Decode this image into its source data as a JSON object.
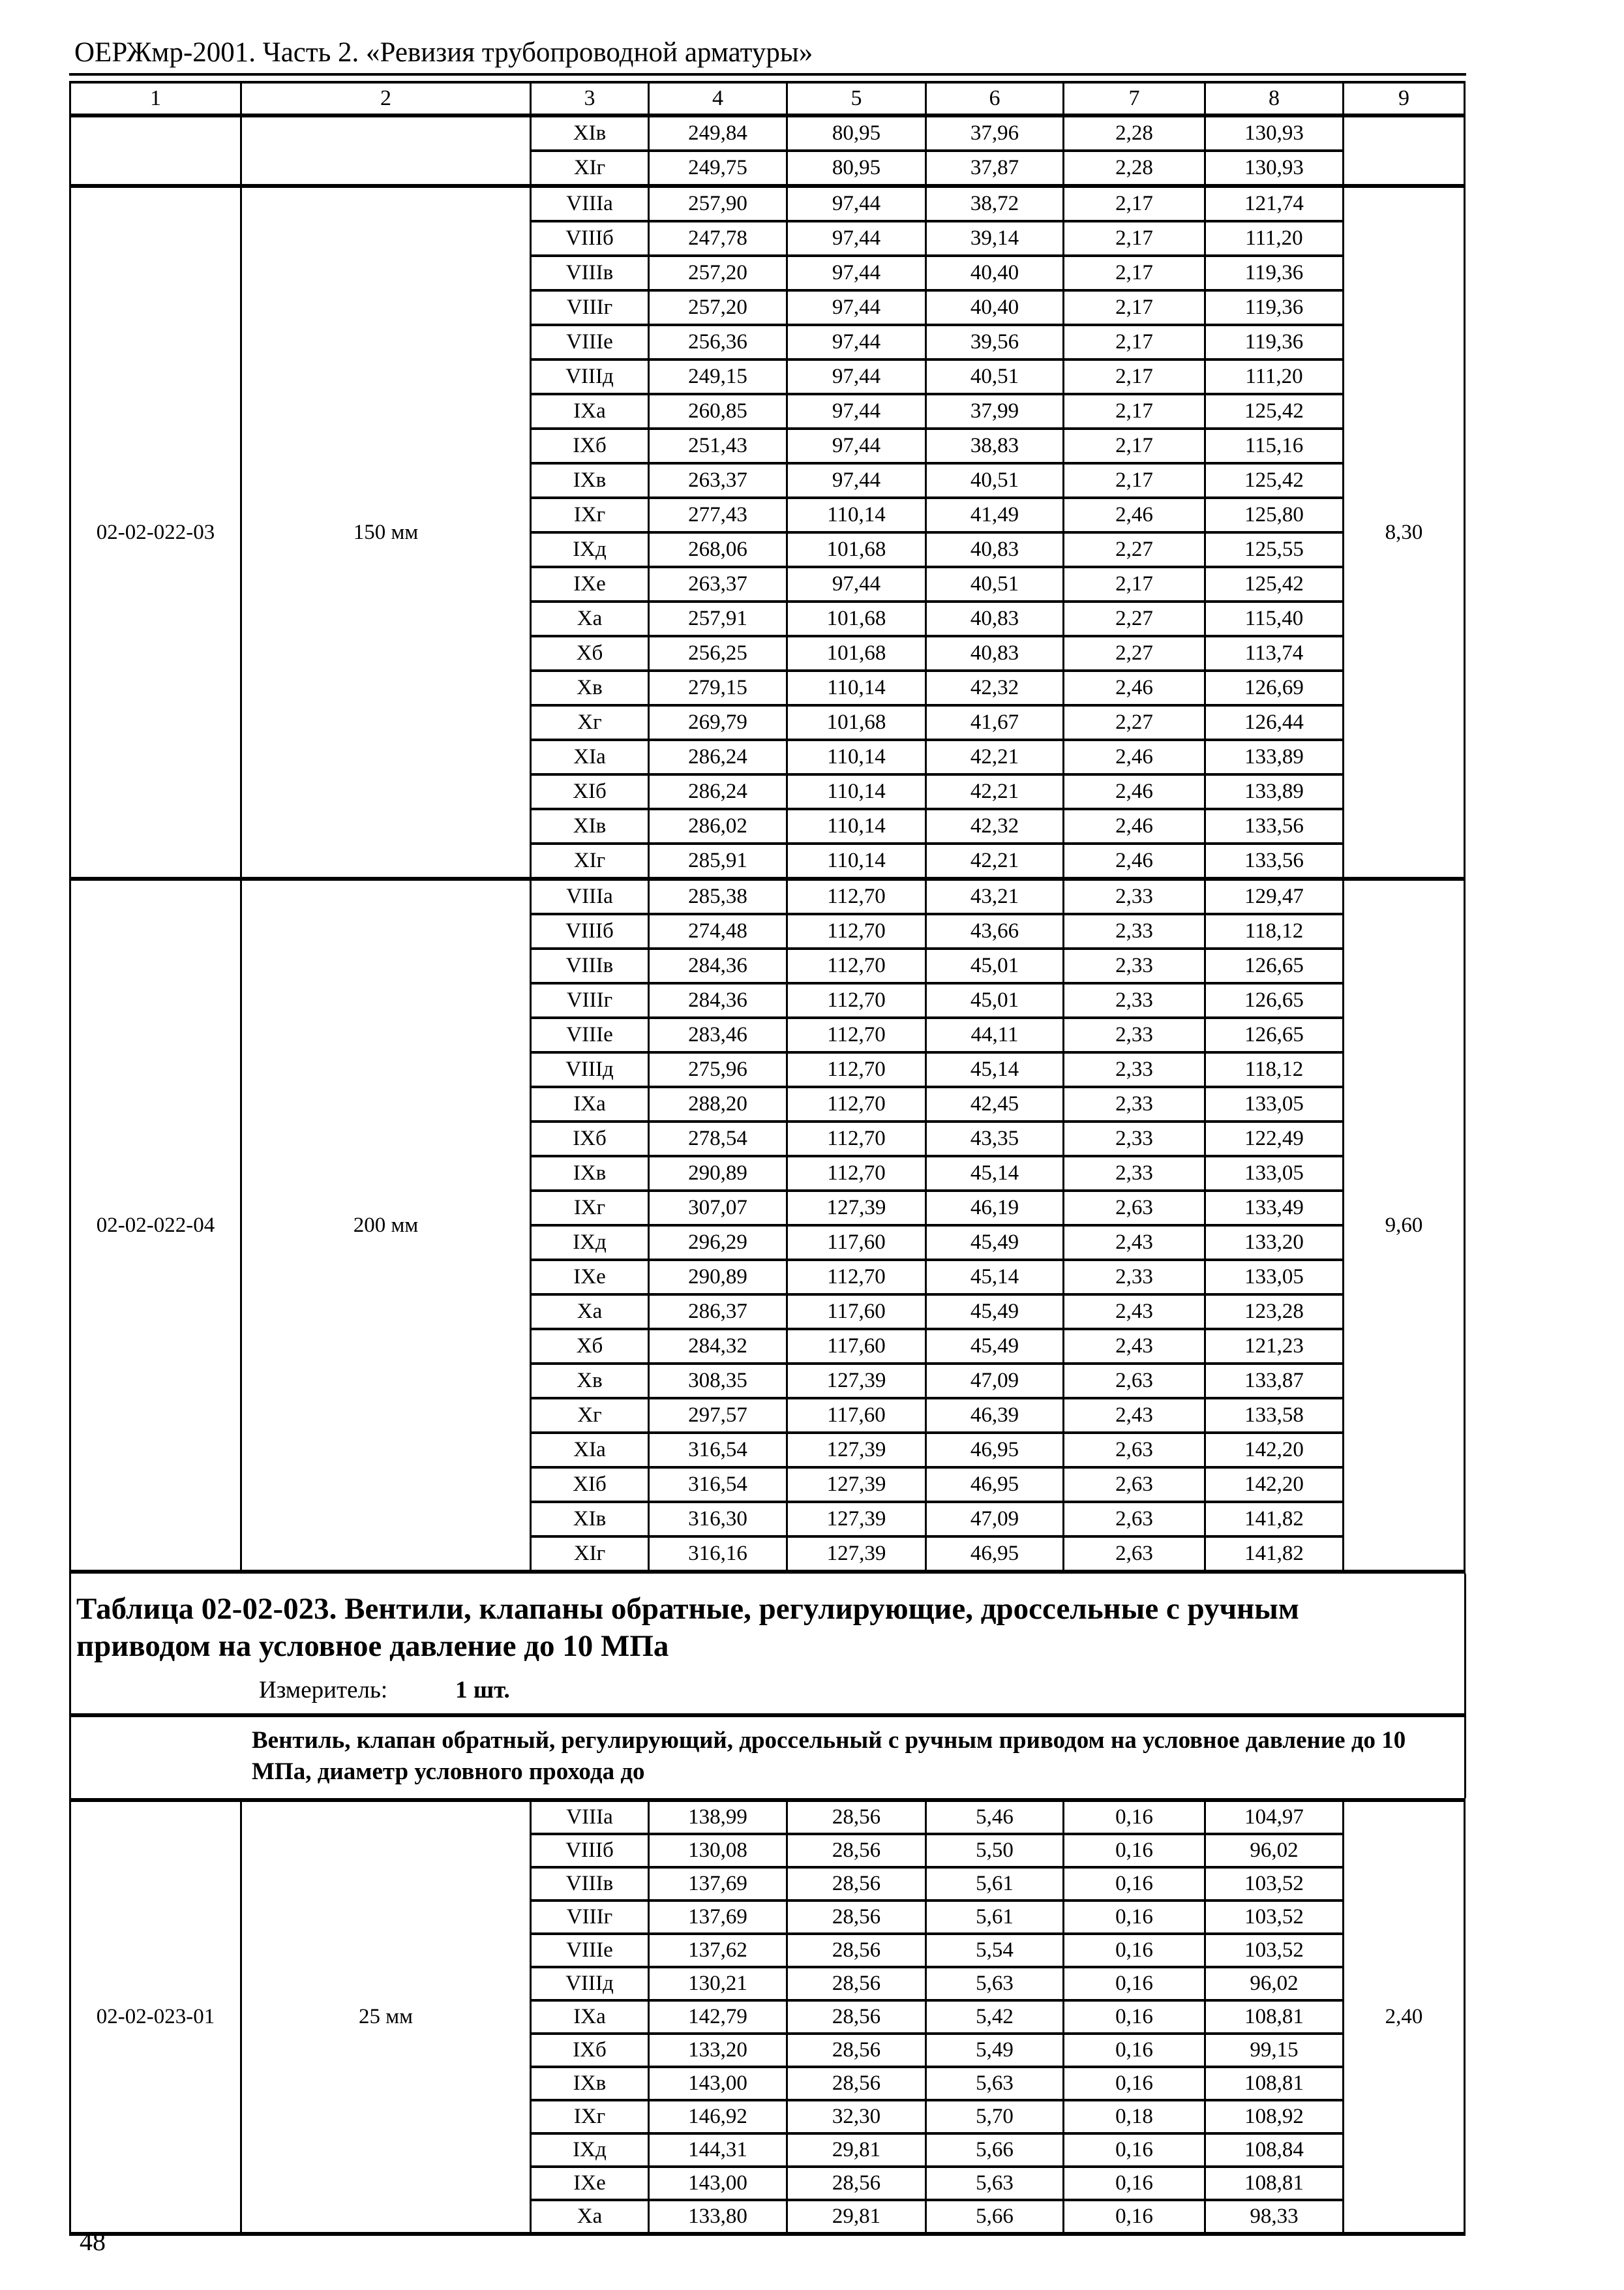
{
  "page": {
    "header": "ОЕРЖмр-2001. Часть 2. «Ревизия трубопроводной арматуры»",
    "number": "48"
  },
  "table": {
    "col_numbers": [
      "1",
      "2",
      "3",
      "4",
      "5",
      "6",
      "7",
      "8",
      "9"
    ],
    "blocks": [
      {
        "code": "",
        "size": "",
        "extra": "",
        "rows": [
          [
            "XIв",
            "249,84",
            "80,95",
            "37,96",
            "2,28",
            "130,93"
          ],
          [
            "XIг",
            "249,75",
            "80,95",
            "37,87",
            "2,28",
            "130,93"
          ]
        ]
      },
      {
        "code": "02-02-022-03",
        "size": "150 мм",
        "extra": "8,30",
        "rows": [
          [
            "VIIIа",
            "257,90",
            "97,44",
            "38,72",
            "2,17",
            "121,74"
          ],
          [
            "VIIIб",
            "247,78",
            "97,44",
            "39,14",
            "2,17",
            "111,20"
          ],
          [
            "VIIIв",
            "257,20",
            "97,44",
            "40,40",
            "2,17",
            "119,36"
          ],
          [
            "VIIIг",
            "257,20",
            "97,44",
            "40,40",
            "2,17",
            "119,36"
          ],
          [
            "VIIIе",
            "256,36",
            "97,44",
            "39,56",
            "2,17",
            "119,36"
          ],
          [
            "VIIIд",
            "249,15",
            "97,44",
            "40,51",
            "2,17",
            "111,20"
          ],
          [
            "IXа",
            "260,85",
            "97,44",
            "37,99",
            "2,17",
            "125,42"
          ],
          [
            "IXб",
            "251,43",
            "97,44",
            "38,83",
            "2,17",
            "115,16"
          ],
          [
            "IXв",
            "263,37",
            "97,44",
            "40,51",
            "2,17",
            "125,42"
          ],
          [
            "IXг",
            "277,43",
            "110,14",
            "41,49",
            "2,46",
            "125,80"
          ],
          [
            "IXд",
            "268,06",
            "101,68",
            "40,83",
            "2,27",
            "125,55"
          ],
          [
            "IXе",
            "263,37",
            "97,44",
            "40,51",
            "2,17",
            "125,42"
          ],
          [
            "Xа",
            "257,91",
            "101,68",
            "40,83",
            "2,27",
            "115,40"
          ],
          [
            "Xб",
            "256,25",
            "101,68",
            "40,83",
            "2,27",
            "113,74"
          ],
          [
            "Xв",
            "279,15",
            "110,14",
            "42,32",
            "2,46",
            "126,69"
          ],
          [
            "Xг",
            "269,79",
            "101,68",
            "41,67",
            "2,27",
            "126,44"
          ],
          [
            "XIа",
            "286,24",
            "110,14",
            "42,21",
            "2,46",
            "133,89"
          ],
          [
            "XIб",
            "286,24",
            "110,14",
            "42,21",
            "2,46",
            "133,89"
          ],
          [
            "XIв",
            "286,02",
            "110,14",
            "42,32",
            "2,46",
            "133,56"
          ],
          [
            "XIг",
            "285,91",
            "110,14",
            "42,21",
            "2,46",
            "133,56"
          ]
        ]
      },
      {
        "code": "02-02-022-04",
        "size": "200 мм",
        "extra": "9,60",
        "rows": [
          [
            "VIIIа",
            "285,38",
            "112,70",
            "43,21",
            "2,33",
            "129,47"
          ],
          [
            "VIIIб",
            "274,48",
            "112,70",
            "43,66",
            "2,33",
            "118,12"
          ],
          [
            "VIIIв",
            "284,36",
            "112,70",
            "45,01",
            "2,33",
            "126,65"
          ],
          [
            "VIIIг",
            "284,36",
            "112,70",
            "45,01",
            "2,33",
            "126,65"
          ],
          [
            "VIIIе",
            "283,46",
            "112,70",
            "44,11",
            "2,33",
            "126,65"
          ],
          [
            "VIIIд",
            "275,96",
            "112,70",
            "45,14",
            "2,33",
            "118,12"
          ],
          [
            "IXа",
            "288,20",
            "112,70",
            "42,45",
            "2,33",
            "133,05"
          ],
          [
            "IXб",
            "278,54",
            "112,70",
            "43,35",
            "2,33",
            "122,49"
          ],
          [
            "IXв",
            "290,89",
            "112,70",
            "45,14",
            "2,33",
            "133,05"
          ],
          [
            "IXг",
            "307,07",
            "127,39",
            "46,19",
            "2,63",
            "133,49"
          ],
          [
            "IXд",
            "296,29",
            "117,60",
            "45,49",
            "2,43",
            "133,20"
          ],
          [
            "IXе",
            "290,89",
            "112,70",
            "45,14",
            "2,33",
            "133,05"
          ],
          [
            "Xа",
            "286,37",
            "117,60",
            "45,49",
            "2,43",
            "123,28"
          ],
          [
            "Xб",
            "284,32",
            "117,60",
            "45,49",
            "2,43",
            "121,23"
          ],
          [
            "Xв",
            "308,35",
            "127,39",
            "47,09",
            "2,63",
            "133,87"
          ],
          [
            "Xг",
            "297,57",
            "117,60",
            "46,39",
            "2,43",
            "133,58"
          ],
          [
            "XIа",
            "316,54",
            "127,39",
            "46,95",
            "2,63",
            "142,20"
          ],
          [
            "XIб",
            "316,54",
            "127,39",
            "46,95",
            "2,63",
            "142,20"
          ],
          [
            "XIв",
            "316,30",
            "127,39",
            "47,09",
            "2,63",
            "141,82"
          ],
          [
            "XIг",
            "316,16",
            "127,39",
            "46,95",
            "2,63",
            "141,82"
          ]
        ]
      }
    ]
  },
  "section": {
    "title_lines": [
      "Таблица 02-02-023. Вентили, клапаны обратные, регулирующие, дроссельные с ручным",
      "приводом на условное давление до 10 МПа"
    ],
    "measurer_label": "Измеритель:",
    "measurer_value": "1 шт.",
    "description_lines": [
      "Вентиль, клапан обратный, регулирующий, дроссельный с ручным приводом на условное давление до 10",
      "МПа, диаметр условного прохода до"
    ]
  },
  "table2": {
    "blocks": [
      {
        "code": "02-02-023-01",
        "size": "25 мм",
        "extra": "2,40",
        "rows": [
          [
            "VIIIа",
            "138,99",
            "28,56",
            "5,46",
            "0,16",
            "104,97"
          ],
          [
            "VIIIб",
            "130,08",
            "28,56",
            "5,50",
            "0,16",
            "96,02"
          ],
          [
            "VIIIв",
            "137,69",
            "28,56",
            "5,61",
            "0,16",
            "103,52"
          ],
          [
            "VIIIг",
            "137,69",
            "28,56",
            "5,61",
            "0,16",
            "103,52"
          ],
          [
            "VIIIе",
            "137,62",
            "28,56",
            "5,54",
            "0,16",
            "103,52"
          ],
          [
            "VIIIд",
            "130,21",
            "28,56",
            "5,63",
            "0,16",
            "96,02"
          ],
          [
            "IXа",
            "142,79",
            "28,56",
            "5,42",
            "0,16",
            "108,81"
          ],
          [
            "IXб",
            "133,20",
            "28,56",
            "5,49",
            "0,16",
            "99,15"
          ],
          [
            "IXв",
            "143,00",
            "28,56",
            "5,63",
            "0,16",
            "108,81"
          ],
          [
            "IXг",
            "146,92",
            "32,30",
            "5,70",
            "0,18",
            "108,92"
          ],
          [
            "IXд",
            "144,31",
            "29,81",
            "5,66",
            "0,16",
            "108,84"
          ],
          [
            "IXе",
            "143,00",
            "28,56",
            "5,63",
            "0,16",
            "108,81"
          ],
          [
            "Xа",
            "133,80",
            "29,81",
            "5,66",
            "0,16",
            "98,33"
          ]
        ]
      }
    ]
  }
}
